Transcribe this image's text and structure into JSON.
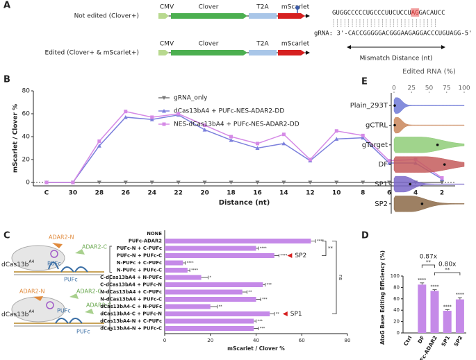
{
  "panel_labels": [
    "A",
    "B",
    "C",
    "D",
    "E"
  ],
  "constructs": {
    "rows": [
      "Not edited (Clover+)",
      "Edited (Clover+ & mScarlet+)"
    ],
    "parts": [
      "CMV",
      "Clover",
      "T2A",
      "mScarlet"
    ]
  },
  "sequence": {
    "target_before": "GUGGCCCCCUGCCCUUCUCCU",
    "target_highlight": "AG",
    "target_after": "GACAUCC",
    "grna": "gRNA: 3'-CACCGGGGGACGGGAAGAGGACCCUGUAGG-5'",
    "mismatch": "Mismatch Distance (nt)"
  },
  "diagram": {
    "adar_n": "ADAR2-N",
    "adar_c": "ADAR2-C",
    "pufc": "PUFc",
    "cas": "dCas13b",
    "cas_sup": "A4"
  },
  "chart_data": [
    {
      "type": "line",
      "x_label": "Distance (nt)",
      "y_label": "mScarlet / Clover %",
      "categories": [
        "C",
        "30",
        "28",
        "26",
        "24",
        "22",
        "20",
        "18",
        "16",
        "14",
        "12",
        "10",
        "8",
        "6",
        "4",
        "2"
      ],
      "ylim": [
        -3,
        80
      ],
      "yticks": [
        0,
        20,
        40,
        60,
        80
      ],
      "series": [
        {
          "name": "gRNA_only",
          "color": "#777777",
          "marker": "triangle-down",
          "values": [
            0,
            0,
            0,
            0,
            0,
            0,
            0,
            0,
            0,
            0,
            0,
            0,
            0,
            0,
            0,
            0
          ]
        },
        {
          "name": "dCas13bA4 + PUFc-NES-ADAR2-DD",
          "color": "#7b7fdc",
          "marker": "triangle",
          "values": [
            0,
            0,
            32,
            57,
            55,
            59,
            46,
            37,
            30,
            34,
            19,
            38,
            39,
            17,
            17,
            3
          ]
        },
        {
          "name": "NES-dCas13bA4 + PUFc-NES-ADAR2-DD",
          "color": "#d58ae6",
          "marker": "square",
          "values": [
            0,
            0,
            36,
            62,
            57,
            60,
            50,
            40,
            34,
            42,
            20,
            45,
            41,
            19,
            20,
            4
          ]
        }
      ]
    },
    {
      "type": "hbar",
      "x_label": "mScarlet / Clover %",
      "categories": [
        "NONE",
        "PUFc-ADAR2",
        "PUFc-N + C-PUFc",
        "PUFc-N + PUFc-C",
        "N-PUFc + C-PUFc",
        "N-PUFc + PUFc-C",
        "C-dCas13bA4 + N-PUFc",
        "C-dCas13bA4 + PUFc-N",
        "N-dCas13bA4 + C-PUFc",
        "N-dCas13bA4 + PUFc-C",
        "dCas13bA4-C + N-PUFc",
        "dCas13bA4-C + PUFc-N",
        "dCas13bA4-N + C-PUFc",
        "dCas13bA4-N + PUFc-C"
      ],
      "values": [
        0,
        64,
        40,
        48,
        8,
        10,
        16,
        43,
        34,
        40,
        20,
        46,
        39,
        39
      ],
      "errors": [
        0,
        2,
        1,
        2,
        1,
        1,
        3,
        1,
        2,
        2,
        3,
        2,
        1,
        2
      ],
      "significance": [
        null,
        "****",
        "****",
        "****",
        "****",
        "****",
        "*",
        "***",
        "**",
        "***",
        "**",
        "**",
        "***",
        "***"
      ],
      "color": "#c58ae8",
      "xlim": [
        0,
        80
      ],
      "xticks": [
        0,
        20,
        40,
        60,
        80
      ],
      "brackets": [
        "**",
        "ns"
      ],
      "callouts": [
        {
          "text": "SP2",
          "index": 3
        },
        {
          "text": "SP1",
          "index": 11
        }
      ]
    },
    {
      "type": "bar",
      "y_label": "AtoG Base Editing Efficiency (%)",
      "categories": [
        "Ctrl",
        "DF",
        "PUFc-ADAR2",
        "SP1",
        "SP2"
      ],
      "values": [
        0,
        85,
        74,
        39,
        59
      ],
      "errors": [
        0,
        3,
        2,
        2,
        3
      ],
      "significance": [
        null,
        "****",
        "****",
        "****",
        "****"
      ],
      "color": "#c58ae8",
      "ylim": [
        0,
        100
      ],
      "yticks": [
        0,
        20,
        40,
        60,
        80,
        100
      ],
      "comparisons": [
        {
          "ratio": "0.87x",
          "stars": "**"
        },
        {
          "ratio": "0.80x",
          "stars": "**"
        }
      ]
    },
    {
      "type": "violin",
      "title": "Edited RNA (%)",
      "categories": [
        "Plain_293T",
        "gCTRL",
        "gTarget",
        "DF",
        "SP1",
        "SP2"
      ],
      "values": [
        1,
        1,
        62,
        72,
        23,
        40
      ],
      "colors": [
        "#6f79d6",
        "#c9865a",
        "#8fcc78",
        "#c45c5c",
        "#7a67c8",
        "#8c6a48"
      ],
      "xlim": [
        0,
        100
      ],
      "xticks": [
        0,
        25,
        50,
        75,
        100
      ]
    }
  ]
}
